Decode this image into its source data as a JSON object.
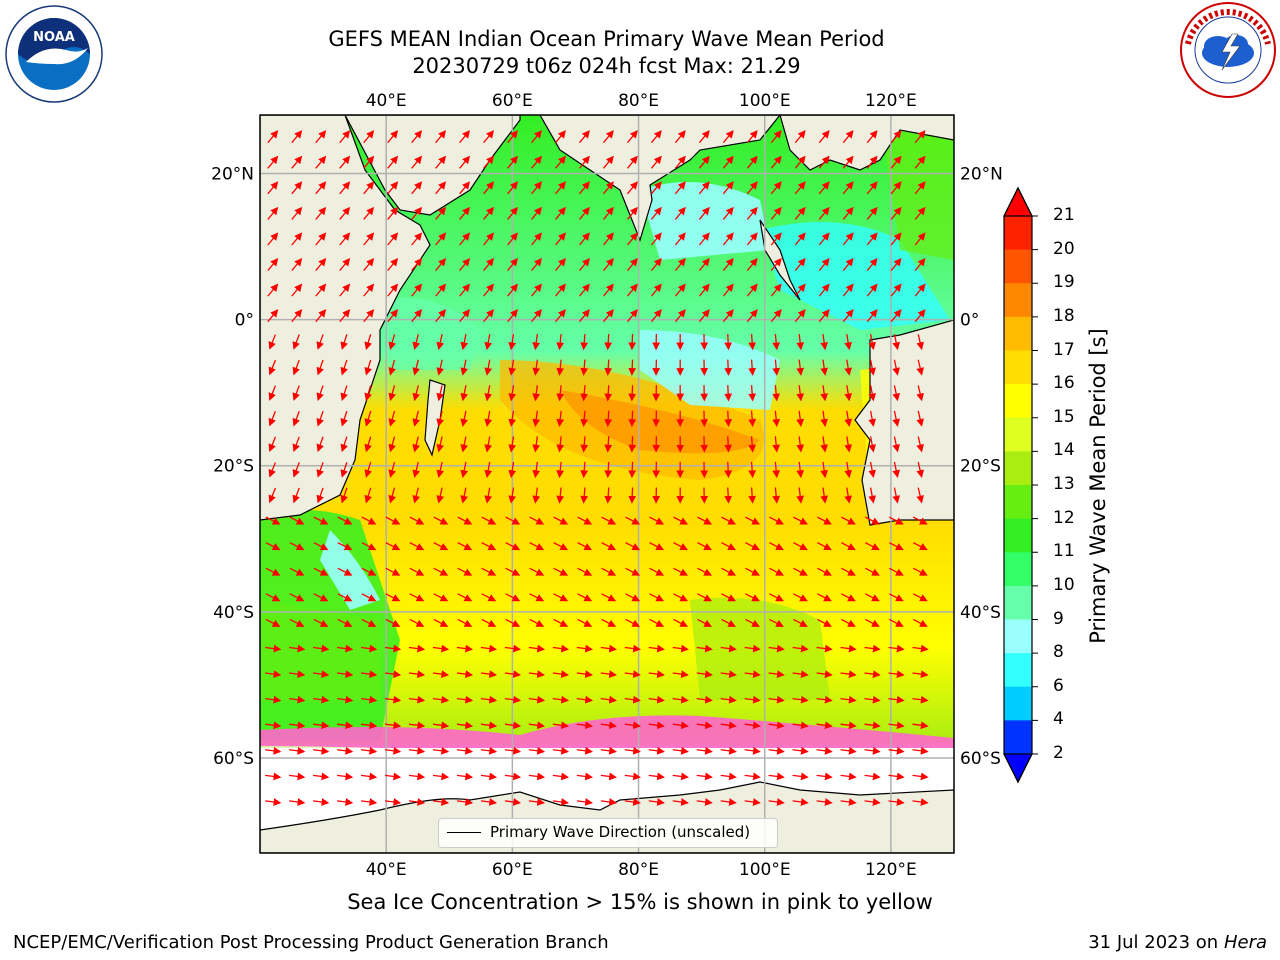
{
  "header": {
    "title_line1": "GEFS MEAN Indian Ocean Primary Wave Mean Period",
    "title_line2": "20230729 t06z 024h fcst   Max: 21.29"
  },
  "logos": {
    "left": {
      "icon": "noaa-logo",
      "text": "NOAA"
    },
    "right": {
      "icon": "national-weather-service-logo",
      "text": "NATIONAL WEATHER SERVICE"
    }
  },
  "map": {
    "projection": "lat-lon",
    "lon_range": [
      20,
      130
    ],
    "lat_range": [
      -73,
      28
    ],
    "grid": true,
    "lon_tick_labels": [
      "40°E",
      "60°E",
      "80°E",
      "100°E",
      "120°E"
    ],
    "lat_tick_labels": [
      "20°N",
      "0°",
      "20°S",
      "40°S",
      "60°S"
    ],
    "land_color": "#efefdf",
    "vector_color": "#ff0000",
    "sea_ice_colors": [
      "#ff66cc",
      "#ffcc66"
    ]
  },
  "colorbar": {
    "label": "Primary Wave Mean Period [s]",
    "tick_labels": [
      "2",
      "4",
      "6",
      "8",
      "9",
      "10",
      "11",
      "12",
      "13",
      "14",
      "15",
      "16",
      "17",
      "18",
      "19",
      "20",
      "21"
    ],
    "colors": [
      "#0033ff",
      "#00ccff",
      "#33ffff",
      "#99ffff",
      "#66ffaa",
      "#33ff66",
      "#33ee22",
      "#66ee11",
      "#aaee11",
      "#ddff22",
      "#ffff00",
      "#ffdd00",
      "#ffbb00",
      "#ff8800",
      "#ff5500",
      "#ff2200"
    ],
    "under_color": "#0000ff",
    "over_color": "#ff0000"
  },
  "legend": {
    "label": "Primary Wave Direction (unscaled)"
  },
  "subtitle": "Sea Ice Concentration > 15% is shown in pink to yellow",
  "footer": {
    "left": "NCEP/EMC/Verification Post Processing Product Generation Branch",
    "right_date": "31 Jul 2023 on ",
    "right_machine": "Hera"
  }
}
